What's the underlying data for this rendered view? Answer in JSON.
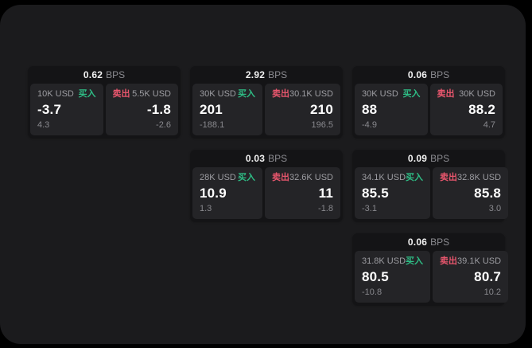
{
  "panel": {
    "background": "#1b1b1d",
    "outer_background": "#000000"
  },
  "colors": {
    "buy": "#2ebd85",
    "sell": "#e8566d",
    "price_text": "#ffffff",
    "muted_text": "#9d9da2",
    "card_bg": "#141416",
    "pane_bg": "#242427"
  },
  "cards": [
    {
      "bps": "0.62",
      "bps_unit": "BPS",
      "buy": {
        "amount": "10K USD",
        "side": "买入",
        "price": "-3.7",
        "delta": "4.3"
      },
      "sell": {
        "side": "卖出",
        "amount": "5.5K USD",
        "price": "-1.8",
        "delta": "-2.6"
      }
    },
    {
      "bps": "2.92",
      "bps_unit": "BPS",
      "buy": {
        "amount": "30K USD",
        "side": "买入",
        "price": "201",
        "delta": "-188.1"
      },
      "sell": {
        "side": "卖出",
        "amount": "30.1K USD",
        "price": "210",
        "delta": "196.5"
      }
    },
    {
      "bps": "0.06",
      "bps_unit": "BPS",
      "buy": {
        "amount": "30K USD",
        "side": "买入",
        "price": "88",
        "delta": "-4.9"
      },
      "sell": {
        "side": "卖出",
        "amount": "30K USD",
        "price": "88.2",
        "delta": "4.7"
      }
    },
    {
      "bps": "0.03",
      "bps_unit": "BPS",
      "buy": {
        "amount": "28K USD",
        "side": "买入",
        "price": "10.9",
        "delta": "1.3"
      },
      "sell": {
        "side": "卖出",
        "amount": "32.6K USD",
        "price": "11",
        "delta": "-1.8"
      }
    },
    {
      "bps": "0.09",
      "bps_unit": "BPS",
      "buy": {
        "amount": "34.1K USD",
        "side": "买入",
        "price": "85.5",
        "delta": "-3.1"
      },
      "sell": {
        "side": "卖出",
        "amount": "32.8K USD",
        "price": "85.8",
        "delta": "3.0"
      }
    },
    {
      "bps": "0.06",
      "bps_unit": "BPS",
      "buy": {
        "amount": "31.8K USD",
        "side": "买入",
        "price": "80.5",
        "delta": "-10.8"
      },
      "sell": {
        "side": "卖出",
        "amount": "39.1K USD",
        "price": "80.7",
        "delta": "10.2"
      }
    }
  ]
}
